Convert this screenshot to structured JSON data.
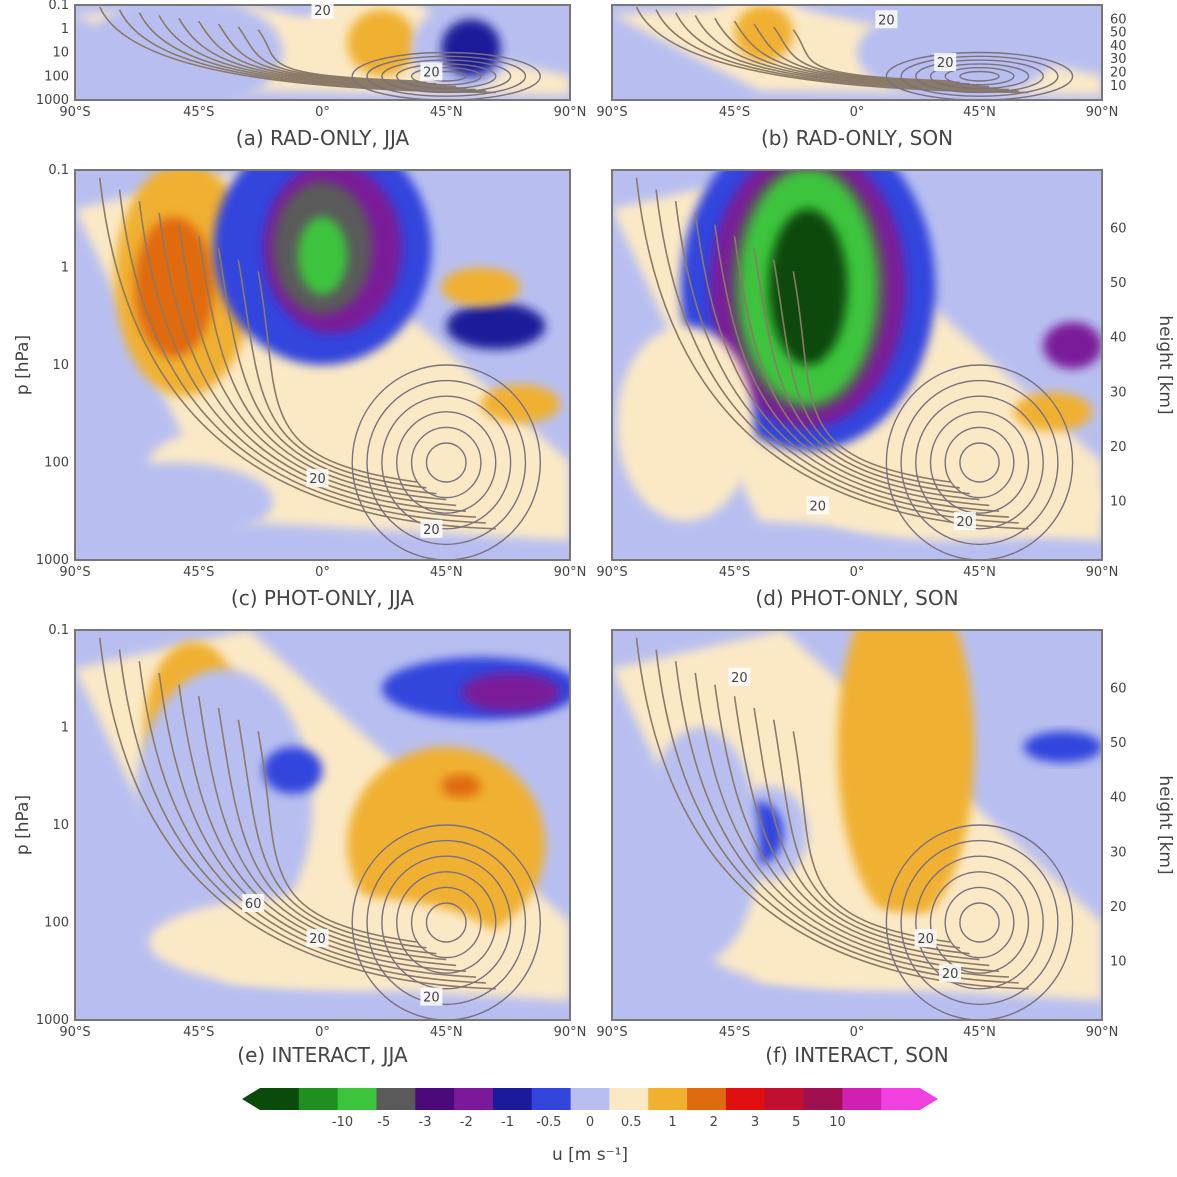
{
  "chart_data": {
    "type": "heatmap",
    "description": "Six latitude–pressure panels of zonal-wind response (shaded) with contoured climatological wind; shared color bar.",
    "y_left_ticks": [
      "0.1",
      "1",
      "10",
      "100",
      "1000"
    ],
    "y_left_label": "p [hPa]",
    "y_right_ticks": [
      "10",
      "20",
      "30",
      "40",
      "50",
      "60"
    ],
    "y_right_label": "height [km]",
    "x_ticks": [
      "90°S",
      "45°S",
      "0°",
      "45°N",
      "90°N"
    ],
    "panels": [
      {
        "id": "a",
        "caption": "(a) RAD-ONLY, JJA",
        "contour_labels": [
          "20",
          "20"
        ]
      },
      {
        "id": "b",
        "caption": "(b) RAD-ONLY, SON",
        "contour_labels": [
          "20",
          "20"
        ]
      },
      {
        "id": "c",
        "caption": "(c) PHOT-ONLY, JJA",
        "contour_labels": [
          "20",
          "20"
        ]
      },
      {
        "id": "d",
        "caption": "(d) PHOT-ONLY, SON",
        "contour_labels": [
          "20",
          "20"
        ]
      },
      {
        "id": "e",
        "caption": "(e) INTERACT, JJA",
        "contour_labels": [
          "60",
          "20",
          "20"
        ]
      },
      {
        "id": "f",
        "caption": "(f) INTERACT, SON",
        "contour_labels": [
          "20",
          "20",
          "20"
        ]
      }
    ],
    "colorbar": {
      "label": "u [m s⁻¹]",
      "ticks": [
        "-10",
        "-5",
        "-3",
        "-2",
        "-1",
        "-0.5",
        "0",
        "0.5",
        "1",
        "2",
        "3",
        "5",
        "10"
      ],
      "colors": [
        "#0a4a0a",
        "#1f8f1f",
        "#3cc43c",
        "#5a5a5a",
        "#4a0a7a",
        "#7a1a9a",
        "#1a1a9a",
        "#3344dd",
        "#b8bff0",
        "#fbe9c6",
        "#f0b030",
        "#e06a10",
        "#e01010",
        "#c01030",
        "#a01050",
        "#d020b0",
        "#f040e0"
      ]
    }
  }
}
